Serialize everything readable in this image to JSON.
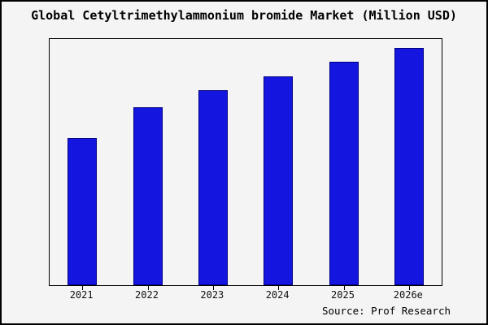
{
  "title": "Global Cetyltrimethylammonium bromide Market (Million USD)",
  "source": "Source: Prof Research",
  "colors": {
    "bar_fill": "#1515e0",
    "bar_edge": "#000080",
    "background": "#f4f4f4",
    "frame": "#000000"
  },
  "chart_data": {
    "type": "bar",
    "categories": [
      "2021",
      "2022",
      "2023",
      "2024",
      "2025",
      "2026e"
    ],
    "values": [
      62,
      75,
      82,
      88,
      94,
      100
    ],
    "title": "Global Cetyltrimethylammonium bromide Market (Million USD)",
    "xlabel": "",
    "ylabel": "",
    "ylim": [
      0,
      103
    ],
    "grid": false,
    "legend": false,
    "annotations": [
      "Source: Prof Research"
    ]
  }
}
